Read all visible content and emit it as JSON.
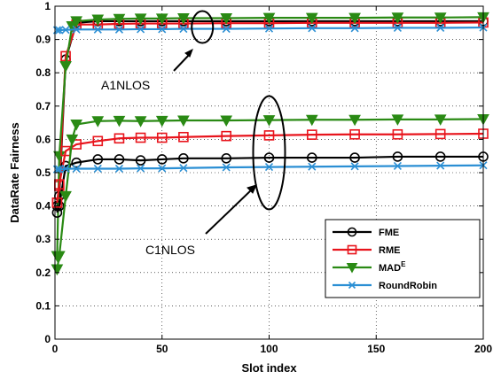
{
  "chart_data": {
    "type": "line",
    "xlabel": "Slot index",
    "ylabel": "DataRate Fairness",
    "xlim": [
      0,
      200
    ],
    "ylim": [
      0,
      1
    ],
    "x_ticks": [
      0,
      50,
      100,
      150,
      200
    ],
    "y_ticks": [
      0,
      0.1,
      0.2,
      0.3,
      0.4,
      0.5,
      0.6,
      0.7,
      0.8,
      0.9,
      1
    ],
    "grid": true,
    "legend_position": "lower-right",
    "series_groups": [
      {
        "scenario": "A1NLOS",
        "series": [
          {
            "name": "FME",
            "color": "#000000",
            "marker": "circle",
            "x": [
              1,
              2,
              5,
              10,
              20,
              30,
              40,
              50,
              60,
              80,
              100,
              120,
              140,
              160,
              180,
              200
            ],
            "y": [
              0.4,
              0.43,
              0.84,
              0.95,
              0.955,
              0.955,
              0.955,
              0.955,
              0.955,
              0.955,
              0.955,
              0.955,
              0.955,
              0.955,
              0.955,
              0.955
            ]
          },
          {
            "name": "RME",
            "color": "#e8141c",
            "marker": "square",
            "x": [
              1,
              2,
              5,
              10,
              20,
              30,
              40,
              50,
              60,
              80,
              100,
              120,
              140,
              160,
              180,
              200
            ],
            "y": [
              0.41,
              0.46,
              0.85,
              0.945,
              0.945,
              0.947,
              0.948,
              0.948,
              0.948,
              0.949,
              0.949,
              0.95,
              0.95,
              0.95,
              0.95,
              0.951
            ]
          },
          {
            "name": "MADE",
            "color": "#2a8a14",
            "marker": "triangle-down",
            "x": [
              1,
              2,
              5,
              8,
              10,
              20,
              30,
              40,
              50,
              60,
              80,
              100,
              120,
              140,
              160,
              180,
              200
            ],
            "y": [
              0.25,
              0.55,
              0.82,
              0.94,
              0.955,
              0.96,
              0.962,
              0.963,
              0.963,
              0.964,
              0.964,
              0.965,
              0.965,
              0.965,
              0.966,
              0.966,
              0.967
            ]
          },
          {
            "name": "RoundRobin",
            "color": "#2b8fd4",
            "marker": "x",
            "x": [
              1,
              2,
              5,
              10,
              20,
              30,
              40,
              50,
              60,
              80,
              100,
              120,
              140,
              160,
              180,
              200
            ],
            "y": [
              0.928,
              0.928,
              0.929,
              0.93,
              0.93,
              0.93,
              0.931,
              0.931,
              0.932,
              0.932,
              0.933,
              0.934,
              0.934,
              0.935,
              0.935,
              0.936
            ]
          }
        ]
      },
      {
        "scenario": "C1NLOS",
        "series": [
          {
            "name": "FME",
            "color": "#000000",
            "marker": "circle",
            "x": [
              1,
              2,
              5,
              10,
              20,
              30,
              40,
              50,
              60,
              80,
              100,
              120,
              140,
              160,
              180,
              200
            ],
            "y": [
              0.38,
              0.4,
              0.52,
              0.53,
              0.54,
              0.54,
              0.537,
              0.54,
              0.543,
              0.543,
              0.545,
              0.545,
              0.545,
              0.548,
              0.548,
              0.548
            ]
          },
          {
            "name": "RME",
            "color": "#e8141c",
            "marker": "square",
            "x": [
              1,
              2,
              5,
              10,
              20,
              30,
              40,
              50,
              60,
              80,
              100,
              120,
              140,
              160,
              180,
              200
            ],
            "y": [
              0.41,
              0.465,
              0.565,
              0.585,
              0.595,
              0.603,
              0.605,
              0.605,
              0.607,
              0.61,
              0.612,
              0.614,
              0.615,
              0.615,
              0.616,
              0.617
            ]
          },
          {
            "name": "MADE",
            "color": "#2a8a14",
            "marker": "triangle-down",
            "x": [
              1,
              2,
              5,
              8,
              10,
              20,
              30,
              40,
              50,
              60,
              80,
              100,
              120,
              140,
              160,
              180,
              200
            ],
            "y": [
              0.21,
              0.25,
              0.43,
              0.6,
              0.645,
              0.655,
              0.656,
              0.655,
              0.656,
              0.657,
              0.657,
              0.658,
              0.659,
              0.659,
              0.66,
              0.66,
              0.661
            ]
          },
          {
            "name": "RoundRobin",
            "color": "#2b8fd4",
            "marker": "x",
            "x": [
              1,
              2,
              5,
              10,
              20,
              30,
              40,
              50,
              60,
              80,
              100,
              120,
              140,
              160,
              180,
              200
            ],
            "y": [
              0.51,
              0.51,
              0.512,
              0.512,
              0.512,
              0.512,
              0.513,
              0.513,
              0.514,
              0.516,
              0.517,
              0.518,
              0.519,
              0.52,
              0.521,
              0.522
            ]
          }
        ]
      }
    ],
    "legend": [
      {
        "name": "FME",
        "color": "#000000",
        "marker": "circle",
        "label": "FME",
        "superscript": ""
      },
      {
        "name": "RME",
        "color": "#e8141c",
        "marker": "square",
        "label": "RME",
        "superscript": ""
      },
      {
        "name": "MADE",
        "color": "#2a8a14",
        "marker": "triangle-down",
        "label": "MAD",
        "superscript": "E"
      },
      {
        "name": "RoundRobin",
        "color": "#2b8fd4",
        "marker": "x",
        "label": "RoundRobin",
        "superscript": ""
      }
    ],
    "annotations": [
      {
        "text": "A1NLOS",
        "target_x": 68,
        "target_y": 0.94
      },
      {
        "text": "C1NLOS",
        "target_x": 100,
        "target_y": 0.56
      }
    ]
  }
}
